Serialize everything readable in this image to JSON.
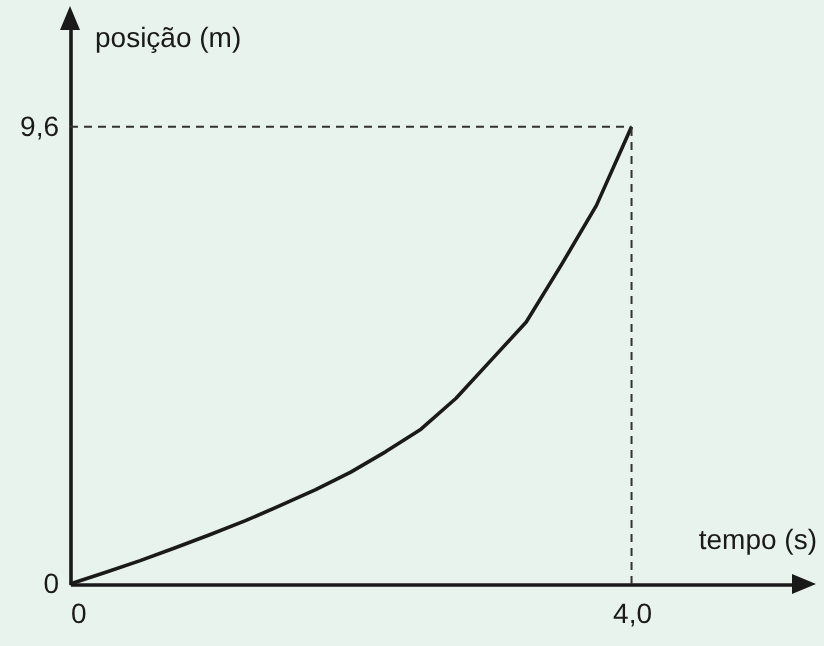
{
  "chart_data": {
    "type": "line",
    "xlabel": "tempo (s)",
    "ylabel": "posição (m)",
    "x": [
      0,
      0.25,
      0.5,
      0.75,
      1,
      1.25,
      1.5,
      1.75,
      2,
      2.25,
      2.5,
      2.75,
      3,
      3.25,
      3.5,
      3.75,
      4.0
    ],
    "series": [
      {
        "color": "#1a1a1a",
        "values": [
          0,
          0.24,
          0.49,
          0.76,
          1.04,
          1.33,
          1.65,
          1.98,
          2.35,
          2.78,
          3.25,
          3.9,
          4.7,
          5.5,
          6.7,
          7.95,
          9.6
        ]
      }
    ],
    "xlim": [
      0,
      5.2
    ],
    "ylim": [
      0,
      11.8
    ],
    "xticks": [
      {
        "value": 0,
        "label": "0"
      },
      {
        "value": 4,
        "label": "4,0"
      }
    ],
    "ref_lines": [
      {
        "axis": "x",
        "value": 4,
        "line_style": "dashed",
        "color": "#333333"
      },
      {
        "axis": "y",
        "value": 9.6,
        "line_style": "dashed",
        "color": "#333333"
      }
    ],
    "yticks": [
      {
        "value": 0,
        "label": "0"
      },
      {
        "value": 9.6,
        "label": "9,6"
      }
    ],
    "marker": "none",
    "line_style": "solid"
  }
}
